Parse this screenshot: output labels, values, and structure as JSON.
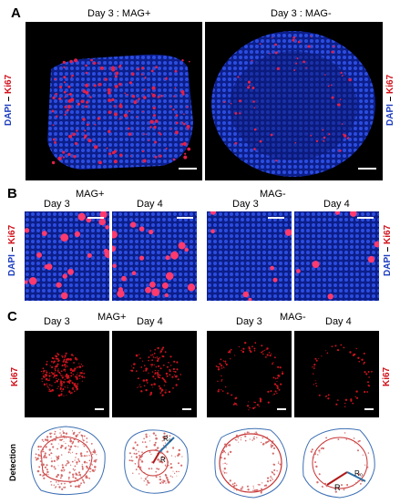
{
  "panels": {
    "a": "A",
    "b": "B",
    "c": "C"
  },
  "section_a": {
    "left_title": "Day 3 : MAG+",
    "right_title": "Day 3 : MAG-",
    "stain_dapi": "DAPI",
    "stain_sep": " – ",
    "stain_ki67": "Ki67"
  },
  "section_b": {
    "group_left": "MAG+",
    "group_right": "MAG-",
    "days": [
      "Day 3",
      "Day 4",
      "Day 3",
      "Day 4"
    ],
    "stain_dapi": "DAPI",
    "stain_sep": " – ",
    "stain_ki67": "Ki67"
  },
  "section_c": {
    "group_left": "MAG+",
    "group_right": "MAG-",
    "days": [
      "Day 3",
      "Day 4",
      "Day 3",
      "Day 4"
    ],
    "stain_ki67": "Ki67",
    "detection_label": "Detection",
    "r_label": "R",
    "r0_label": "R₀"
  },
  "colors": {
    "dapi_blue": "#1f3fbf",
    "ki67_red": "#d0101a",
    "outline_blue": "#3d6fb3",
    "outline_red": "#c83232"
  }
}
